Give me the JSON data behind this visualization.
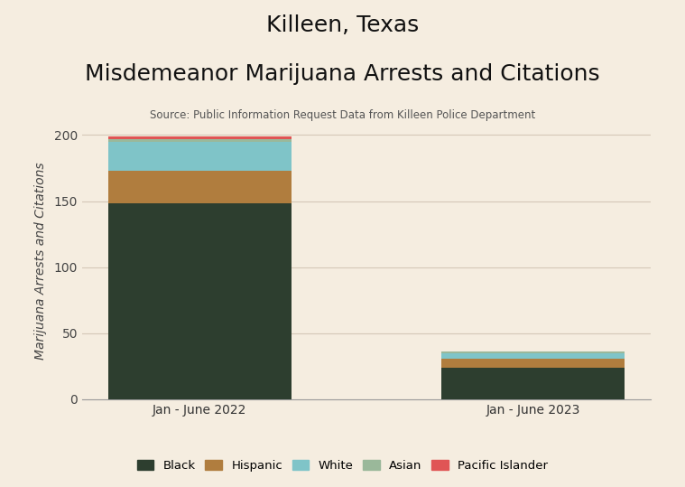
{
  "categories": [
    "Jan - June 2022",
    "Jan - June 2023"
  ],
  "series": {
    "Black": [
      148,
      24
    ],
    "Hispanic": [
      25,
      7
    ],
    "White": [
      22,
      4
    ],
    "Asian": [
      2,
      1
    ],
    "Pacific Islander": [
      2,
      0.5
    ]
  },
  "colors": {
    "Black": "#2d3e2f",
    "Hispanic": "#b07d3e",
    "White": "#7fc4c8",
    "Asian": "#9ab89a",
    "Pacific Islander": "#e05555"
  },
  "title_line1": "Killeen, Texas",
  "title_line2": "Misdemeanor Marijuana Arrests and Citations",
  "source": "Source: Public Information Request Data from Killeen Police Department",
  "ylabel": "Marijuana Arrests and Citations",
  "ylim": [
    0,
    210
  ],
  "yticks": [
    0,
    50,
    100,
    150,
    200
  ],
  "background_color": "#f5ede0",
  "bar_width": 0.55,
  "title_fontsize": 18,
  "source_fontsize": 8.5,
  "axis_label_fontsize": 10,
  "legend_fontsize": 9.5,
  "tick_fontsize": 10,
  "grid_color": "#d4c8b8"
}
